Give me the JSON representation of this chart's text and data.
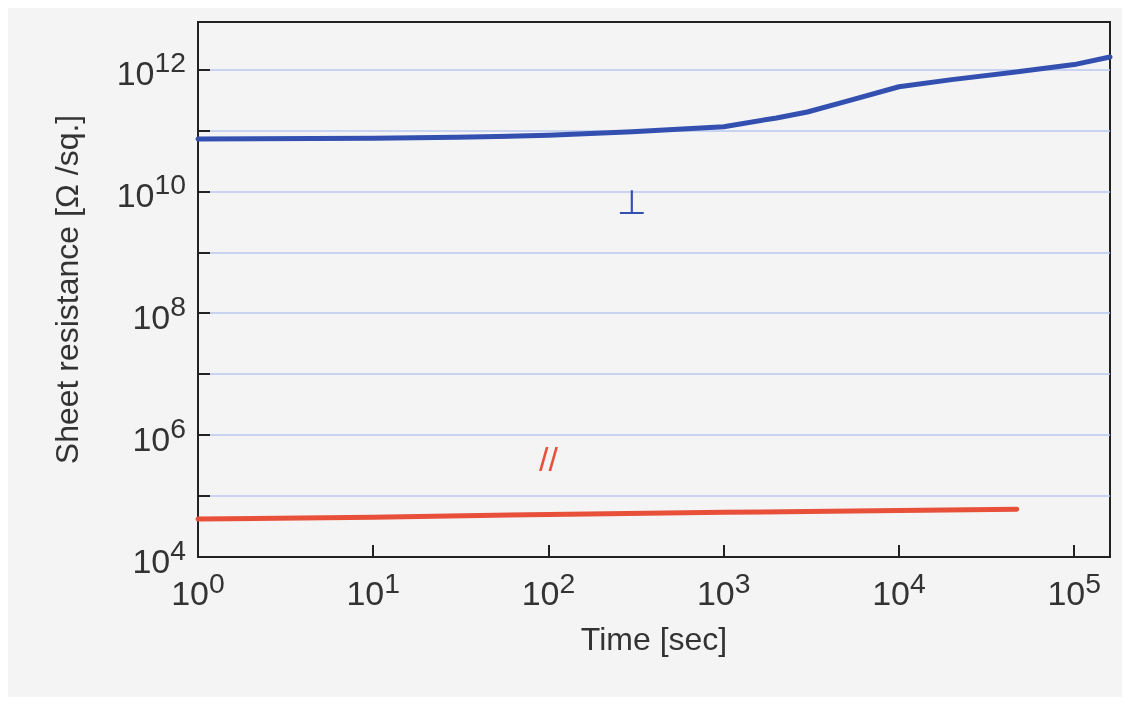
{
  "chart_data": {
    "type": "line",
    "xlabel": "Time [sec]",
    "ylabel": "Sheet resistance [Ω /sq.]",
    "log": "xy",
    "grid": "y",
    "marker": "none",
    "line_style": "solid",
    "xlim": [
      1,
      160000
    ],
    "ylim": [
      10000,
      6000000000000
    ],
    "xticks": [
      {
        "value": 1,
        "label": "10$^{0}$"
      },
      {
        "value": 10,
        "label": "10$^{1}$"
      },
      {
        "value": 100,
        "label": "10$^{2}$"
      },
      {
        "value": 1000,
        "label": "10$^{3}$"
      },
      {
        "value": 10000,
        "label": "10$^{4}$"
      },
      {
        "value": 100000,
        "label": "10$^{5}$"
      }
    ],
    "yticks": [
      {
        "value": 10000,
        "label": "10$^{4}$"
      },
      {
        "value": 100000,
        "label": null
      },
      {
        "value": 1000000,
        "label": "10$^{6}$"
      },
      {
        "value": 10000000,
        "label": null
      },
      {
        "value": 100000000,
        "label": "10$^{8}$"
      },
      {
        "value": 1000000000,
        "label": null
      },
      {
        "value": 10000000000,
        "label": "10$^{10}$"
      },
      {
        "value": 100000000000,
        "label": null
      },
      {
        "value": 1000000000000,
        "label": "10$^{12}$"
      }
    ],
    "series": [
      {
        "name": "⊥",
        "color": "#3350b0",
        "x": [
          1,
          10,
          30,
          100,
          300,
          1000,
          2000,
          3000,
          5000,
          10000,
          20000,
          50000,
          100000,
          160000
        ],
        "values": [
          72000000000,
          74000000000,
          77000000000,
          83000000000,
          95000000000,
          115000000000,
          160000000000,
          200000000000,
          300000000000,
          520000000000,
          680000000000,
          930000000000,
          1200000000000,
          1600000000000
        ]
      },
      {
        "name": "//",
        "color": "#e8503a",
        "x": [
          1,
          10,
          100,
          1000,
          10000,
          47000
        ],
        "values": [
          42000,
          45000,
          50000,
          54000,
          58000,
          61000
        ]
      }
    ]
  }
}
